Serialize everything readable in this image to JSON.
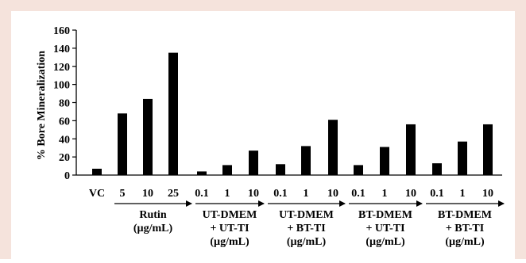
{
  "chart_data": {
    "type": "bar",
    "ylabel": "% Bore Mineralization",
    "ylim": [
      0,
      160
    ],
    "yticks": [
      "0",
      "20",
      "40",
      "60",
      "80",
      "100",
      "120",
      "140",
      "160"
    ],
    "grid": false,
    "legend": "none",
    "bar_color": "#000000",
    "categories": [
      "VC",
      "5",
      "10",
      "25",
      "0.1",
      "1",
      "10",
      "0.1",
      "1",
      "10",
      "0.1",
      "1",
      "10",
      "0.1",
      "1",
      "10"
    ],
    "values": [
      7,
      68,
      84,
      135,
      4,
      11,
      27,
      12,
      32,
      61,
      11,
      31,
      56,
      13,
      37,
      56
    ],
    "groups": [
      {
        "lines": [
          "Rutin",
          "(µg/mL)"
        ]
      },
      {
        "lines": [
          "UT-DMEM",
          "+ UT-TI",
          "(µg/mL)"
        ]
      },
      {
        "lines": [
          "UT-DMEM",
          "+ BT-TI",
          "(µg/mL)"
        ]
      },
      {
        "lines": [
          "BT-DMEM",
          "+ UT-TI",
          "(µg/mL)"
        ]
      },
      {
        "lines": [
          "BT-DMEM",
          "+ BT-TI",
          "(µg/mL)"
        ]
      }
    ]
  }
}
